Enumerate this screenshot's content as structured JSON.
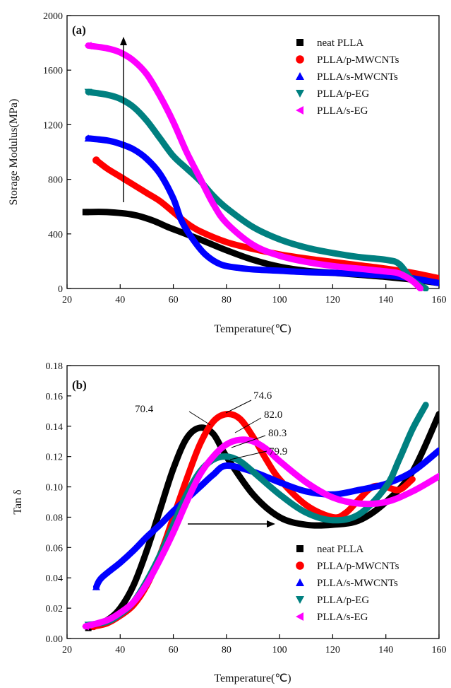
{
  "colors": {
    "neat": "#000000",
    "pmw": "#ff0000",
    "smw": "#0000ff",
    "peg": "#008080",
    "seg": "#ff00ff"
  },
  "chart_data": [
    {
      "type": "line",
      "panel_label": "(a)",
      "xlabel": "Temperature(℃)",
      "ylabel": "Storage Modulus(MPa)",
      "xlim": [
        20,
        160
      ],
      "ylim": [
        0,
        2000
      ],
      "xticks": [
        20,
        40,
        60,
        80,
        100,
        120,
        140,
        160
      ],
      "yticks": [
        0,
        400,
        800,
        1200,
        1600,
        2000
      ],
      "legend_position": "top-right",
      "series": [
        {
          "name": "neat PLLA",
          "color": "#000000",
          "marker": "square",
          "x": [
            27,
            35,
            45,
            52,
            58,
            62,
            70,
            80,
            90,
            100,
            110,
            120,
            130,
            140,
            150,
            160
          ],
          "y": [
            560,
            560,
            540,
            500,
            450,
            420,
            360,
            280,
            210,
            160,
            130,
            115,
            100,
            85,
            65,
            40
          ]
        },
        {
          "name": "PLLA/p-MWCNTs",
          "color": "#ff0000",
          "marker": "circle",
          "x": [
            31,
            35,
            40,
            45,
            50,
            55,
            60,
            65,
            70,
            80,
            90,
            100,
            110,
            120,
            130,
            140,
            150,
            160
          ],
          "y": [
            940,
            880,
            820,
            760,
            700,
            640,
            560,
            480,
            420,
            340,
            290,
            250,
            220,
            195,
            170,
            145,
            115,
            75
          ]
        },
        {
          "name": "PLLA/s-MWCNTs",
          "color": "#0000ff",
          "marker": "triangle-up",
          "x": [
            28,
            35,
            40,
            45,
            50,
            55,
            60,
            63,
            67,
            72,
            78,
            85,
            90,
            100,
            110,
            120,
            130,
            140,
            150,
            160
          ],
          "y": [
            1100,
            1085,
            1060,
            1020,
            950,
            840,
            660,
            500,
            370,
            250,
            175,
            150,
            140,
            130,
            120,
            115,
            105,
            95,
            75,
            40
          ]
        },
        {
          "name": "PLLA/p-EG",
          "color": "#008080",
          "marker": "triangle-down",
          "x": [
            28,
            35,
            40,
            45,
            50,
            55,
            60,
            65,
            70,
            75,
            80,
            90,
            100,
            110,
            120,
            130,
            140,
            145,
            150,
            155
          ],
          "y": [
            1440,
            1420,
            1390,
            1330,
            1230,
            1100,
            970,
            880,
            790,
            680,
            590,
            450,
            360,
            300,
            260,
            230,
            210,
            180,
            60,
            0
          ]
        },
        {
          "name": "PLLA/s-EG",
          "color": "#ff00ff",
          "marker": "triangle-left",
          "x": [
            28,
            35,
            40,
            45,
            50,
            55,
            60,
            65,
            70,
            75,
            80,
            90,
            100,
            110,
            120,
            130,
            140,
            145,
            150,
            153
          ],
          "y": [
            1780,
            1760,
            1730,
            1670,
            1570,
            1410,
            1220,
            1000,
            810,
            620,
            480,
            320,
            240,
            195,
            165,
            145,
            125,
            110,
            55,
            0
          ]
        }
      ]
    },
    {
      "type": "line",
      "panel_label": "(b)",
      "xlabel": "Temperature(℃)",
      "ylabel": "Tan δ",
      "xlim": [
        20,
        160
      ],
      "ylim": [
        0.0,
        0.18
      ],
      "xticks": [
        20,
        40,
        60,
        80,
        100,
        120,
        140,
        160
      ],
      "yticks": [
        "0.00",
        "0.02",
        "0.04",
        "0.06",
        "0.08",
        "0.10",
        "0.12",
        "0.14",
        "0.16",
        "0.18"
      ],
      "legend_position": "bottom-right",
      "annotations": [
        "70.4",
        "74.6",
        "82.0",
        "80.3",
        "79.9"
      ],
      "series": [
        {
          "name": "neat PLLA",
          "color": "#000000",
          "marker": "square",
          "x": [
            28,
            35,
            40,
            45,
            50,
            55,
            60,
            65,
            70,
            75,
            80,
            90,
            100,
            110,
            120,
            130,
            140,
            150,
            160
          ],
          "y": [
            0.007,
            0.012,
            0.02,
            0.035,
            0.058,
            0.085,
            0.112,
            0.132,
            0.139,
            0.135,
            0.12,
            0.095,
            0.08,
            0.075,
            0.075,
            0.078,
            0.09,
            0.11,
            0.148
          ]
        },
        {
          "name": "PLLA/p-MWCNTs",
          "color": "#ff0000",
          "marker": "circle",
          "x": [
            30,
            35,
            40,
            45,
            50,
            55,
            60,
            65,
            70,
            75,
            80,
            85,
            90,
            95,
            100,
            110,
            120,
            125,
            130,
            135,
            140,
            145,
            150
          ],
          "y": [
            0.008,
            0.01,
            0.015,
            0.022,
            0.035,
            0.055,
            0.08,
            0.105,
            0.128,
            0.143,
            0.148,
            0.145,
            0.133,
            0.118,
            0.105,
            0.088,
            0.08,
            0.083,
            0.092,
            0.1,
            0.1,
            0.098,
            0.105
          ]
        },
        {
          "name": "PLLA/s-MWCNTs",
          "color": "#0000ff",
          "marker": "triangle-up",
          "x": [
            31,
            33,
            40,
            45,
            50,
            55,
            60,
            65,
            70,
            75,
            80,
            90,
            100,
            110,
            120,
            130,
            140,
            150,
            160
          ],
          "y": [
            0.034,
            0.04,
            0.05,
            0.058,
            0.067,
            0.075,
            0.084,
            0.092,
            0.1,
            0.108,
            0.114,
            0.11,
            0.103,
            0.097,
            0.095,
            0.098,
            0.102,
            0.11,
            0.124
          ]
        },
        {
          "name": "PLLA/p-EG",
          "color": "#008080",
          "marker": "triangle-down",
          "x": [
            28,
            35,
            40,
            45,
            50,
            55,
            60,
            65,
            70,
            75,
            80,
            85,
            90,
            100,
            110,
            120,
            130,
            140,
            145,
            150,
            155
          ],
          "y": [
            0.009,
            0.011,
            0.016,
            0.024,
            0.038,
            0.055,
            0.075,
            0.095,
            0.11,
            0.118,
            0.12,
            0.117,
            0.11,
            0.095,
            0.083,
            0.078,
            0.082,
            0.1,
            0.118,
            0.138,
            0.154
          ]
        },
        {
          "name": "PLLA/s-EG",
          "color": "#ff00ff",
          "marker": "triangle-left",
          "x": [
            27,
            35,
            40,
            45,
            50,
            55,
            60,
            65,
            70,
            75,
            80,
            85,
            90,
            95,
            100,
            110,
            120,
            130,
            140,
            150,
            160
          ],
          "y": [
            0.008,
            0.012,
            0.017,
            0.024,
            0.036,
            0.052,
            0.07,
            0.09,
            0.108,
            0.12,
            0.128,
            0.131,
            0.13,
            0.125,
            0.117,
            0.103,
            0.093,
            0.089,
            0.09,
            0.097,
            0.107
          ]
        }
      ]
    }
  ]
}
